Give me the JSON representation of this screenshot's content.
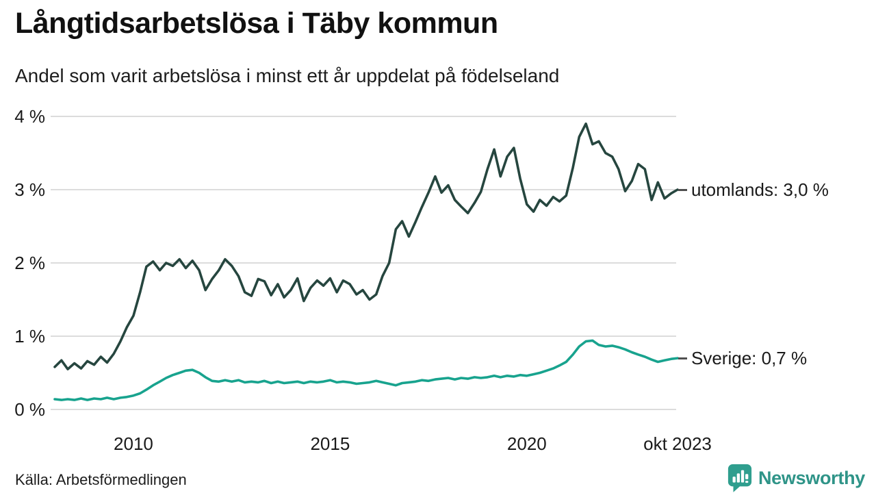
{
  "header": {
    "title": "Långtidsarbetslösa i Täby kommun",
    "subtitle": "Andel som varit arbetslösa i minst ett år uppdelat på födelseland"
  },
  "footer": {
    "source": "Källa: Arbetsförmedlingen",
    "brand": "Newsworthy",
    "brand_color": "#2f9488"
  },
  "chart_data": {
    "type": "line",
    "title": "Långtidsarbetslösa i Täby kommun",
    "subtitle": "Andel som varit arbetslösa i minst ett år uppdelat på födelseland",
    "unit": "%",
    "grid": "horizontal",
    "grid_color": "#dcdcdc",
    "background": "#ffffff",
    "legend_position": "right-end-labels",
    "x_axis": {
      "range": [
        2008.0,
        2023.83
      ],
      "ticks": [
        {
          "label": "2010",
          "year": 2010
        },
        {
          "label": "2015",
          "year": 2015
        },
        {
          "label": "2020",
          "year": 2020
        },
        {
          "label": "okt 2023",
          "year": 2023.83
        }
      ]
    },
    "y_axis": {
      "range": [
        0,
        4
      ],
      "ticks": [
        {
          "label": "0 %",
          "value": 0
        },
        {
          "label": "1 %",
          "value": 1
        },
        {
          "label": "2 %",
          "value": 2
        },
        {
          "label": "3 %",
          "value": 3
        },
        {
          "label": "4 %",
          "value": 4
        }
      ]
    },
    "series": [
      {
        "name": "utomlands",
        "label": "utomlands: 3,0 %",
        "last_value": 3.0,
        "color": "#26463f",
        "points": [
          [
            2008.0,
            0.58
          ],
          [
            2008.17,
            0.67
          ],
          [
            2008.33,
            0.55
          ],
          [
            2008.5,
            0.63
          ],
          [
            2008.67,
            0.56
          ],
          [
            2008.83,
            0.66
          ],
          [
            2009.0,
            0.61
          ],
          [
            2009.17,
            0.72
          ],
          [
            2009.33,
            0.64
          ],
          [
            2009.5,
            0.76
          ],
          [
            2009.67,
            0.93
          ],
          [
            2009.83,
            1.12
          ],
          [
            2010.0,
            1.28
          ],
          [
            2010.17,
            1.6
          ],
          [
            2010.33,
            1.95
          ],
          [
            2010.5,
            2.02
          ],
          [
            2010.67,
            1.9
          ],
          [
            2010.83,
            2.0
          ],
          [
            2011.0,
            1.96
          ],
          [
            2011.17,
            2.05
          ],
          [
            2011.33,
            1.93
          ],
          [
            2011.5,
            2.03
          ],
          [
            2011.67,
            1.9
          ],
          [
            2011.83,
            1.63
          ],
          [
            2012.0,
            1.78
          ],
          [
            2012.17,
            1.9
          ],
          [
            2012.33,
            2.05
          ],
          [
            2012.5,
            1.96
          ],
          [
            2012.67,
            1.82
          ],
          [
            2012.83,
            1.6
          ],
          [
            2013.0,
            1.55
          ],
          [
            2013.17,
            1.78
          ],
          [
            2013.33,
            1.75
          ],
          [
            2013.5,
            1.56
          ],
          [
            2013.67,
            1.71
          ],
          [
            2013.83,
            1.53
          ],
          [
            2014.0,
            1.63
          ],
          [
            2014.17,
            1.79
          ],
          [
            2014.33,
            1.48
          ],
          [
            2014.5,
            1.66
          ],
          [
            2014.67,
            1.76
          ],
          [
            2014.83,
            1.69
          ],
          [
            2015.0,
            1.79
          ],
          [
            2015.17,
            1.6
          ],
          [
            2015.33,
            1.76
          ],
          [
            2015.5,
            1.71
          ],
          [
            2015.67,
            1.57
          ],
          [
            2015.83,
            1.63
          ],
          [
            2016.0,
            1.5
          ],
          [
            2016.17,
            1.57
          ],
          [
            2016.33,
            1.82
          ],
          [
            2016.5,
            2.0
          ],
          [
            2016.67,
            2.46
          ],
          [
            2016.83,
            2.57
          ],
          [
            2017.0,
            2.36
          ],
          [
            2017.17,
            2.56
          ],
          [
            2017.33,
            2.76
          ],
          [
            2017.5,
            2.96
          ],
          [
            2017.67,
            3.18
          ],
          [
            2017.83,
            2.96
          ],
          [
            2018.0,
            3.06
          ],
          [
            2018.17,
            2.86
          ],
          [
            2018.33,
            2.77
          ],
          [
            2018.5,
            2.68
          ],
          [
            2018.67,
            2.82
          ],
          [
            2018.83,
            2.97
          ],
          [
            2019.0,
            3.28
          ],
          [
            2019.17,
            3.55
          ],
          [
            2019.33,
            3.18
          ],
          [
            2019.5,
            3.45
          ],
          [
            2019.67,
            3.57
          ],
          [
            2019.83,
            3.15
          ],
          [
            2020.0,
            2.8
          ],
          [
            2020.17,
            2.7
          ],
          [
            2020.33,
            2.86
          ],
          [
            2020.5,
            2.78
          ],
          [
            2020.67,
            2.9
          ],
          [
            2020.83,
            2.84
          ],
          [
            2021.0,
            2.92
          ],
          [
            2021.17,
            3.3
          ],
          [
            2021.33,
            3.72
          ],
          [
            2021.5,
            3.9
          ],
          [
            2021.67,
            3.62
          ],
          [
            2021.83,
            3.66
          ],
          [
            2022.0,
            3.5
          ],
          [
            2022.17,
            3.45
          ],
          [
            2022.33,
            3.28
          ],
          [
            2022.5,
            2.98
          ],
          [
            2022.67,
            3.12
          ],
          [
            2022.83,
            3.35
          ],
          [
            2023.0,
            3.28
          ],
          [
            2023.17,
            2.86
          ],
          [
            2023.33,
            3.1
          ],
          [
            2023.5,
            2.88
          ],
          [
            2023.67,
            2.95
          ],
          [
            2023.83,
            3.0
          ]
        ]
      },
      {
        "name": "Sverige",
        "label": "Sverige: 0,7 %",
        "last_value": 0.7,
        "color": "#18a38e",
        "points": [
          [
            2008.0,
            0.14
          ],
          [
            2008.17,
            0.13
          ],
          [
            2008.33,
            0.14
          ],
          [
            2008.5,
            0.13
          ],
          [
            2008.67,
            0.15
          ],
          [
            2008.83,
            0.13
          ],
          [
            2009.0,
            0.15
          ],
          [
            2009.17,
            0.14
          ],
          [
            2009.33,
            0.16
          ],
          [
            2009.5,
            0.14
          ],
          [
            2009.67,
            0.16
          ],
          [
            2009.83,
            0.17
          ],
          [
            2010.0,
            0.19
          ],
          [
            2010.17,
            0.22
          ],
          [
            2010.33,
            0.27
          ],
          [
            2010.5,
            0.33
          ],
          [
            2010.67,
            0.38
          ],
          [
            2010.83,
            0.43
          ],
          [
            2011.0,
            0.47
          ],
          [
            2011.17,
            0.5
          ],
          [
            2011.33,
            0.53
          ],
          [
            2011.5,
            0.54
          ],
          [
            2011.67,
            0.5
          ],
          [
            2011.83,
            0.44
          ],
          [
            2012.0,
            0.39
          ],
          [
            2012.17,
            0.38
          ],
          [
            2012.33,
            0.4
          ],
          [
            2012.5,
            0.38
          ],
          [
            2012.67,
            0.4
          ],
          [
            2012.83,
            0.37
          ],
          [
            2013.0,
            0.38
          ],
          [
            2013.17,
            0.37
          ],
          [
            2013.33,
            0.39
          ],
          [
            2013.5,
            0.36
          ],
          [
            2013.67,
            0.38
          ],
          [
            2013.83,
            0.36
          ],
          [
            2014.0,
            0.37
          ],
          [
            2014.17,
            0.38
          ],
          [
            2014.33,
            0.36
          ],
          [
            2014.5,
            0.38
          ],
          [
            2014.67,
            0.37
          ],
          [
            2014.83,
            0.38
          ],
          [
            2015.0,
            0.4
          ],
          [
            2015.17,
            0.37
          ],
          [
            2015.33,
            0.38
          ],
          [
            2015.5,
            0.37
          ],
          [
            2015.67,
            0.35
          ],
          [
            2015.83,
            0.36
          ],
          [
            2016.0,
            0.37
          ],
          [
            2016.17,
            0.39
          ],
          [
            2016.33,
            0.37
          ],
          [
            2016.5,
            0.35
          ],
          [
            2016.67,
            0.33
          ],
          [
            2016.83,
            0.36
          ],
          [
            2017.0,
            0.37
          ],
          [
            2017.17,
            0.38
          ],
          [
            2017.33,
            0.4
          ],
          [
            2017.5,
            0.39
          ],
          [
            2017.67,
            0.41
          ],
          [
            2017.83,
            0.42
          ],
          [
            2018.0,
            0.43
          ],
          [
            2018.17,
            0.41
          ],
          [
            2018.33,
            0.43
          ],
          [
            2018.5,
            0.42
          ],
          [
            2018.67,
            0.44
          ],
          [
            2018.83,
            0.43
          ],
          [
            2019.0,
            0.44
          ],
          [
            2019.17,
            0.46
          ],
          [
            2019.33,
            0.44
          ],
          [
            2019.5,
            0.46
          ],
          [
            2019.67,
            0.45
          ],
          [
            2019.83,
            0.47
          ],
          [
            2020.0,
            0.46
          ],
          [
            2020.17,
            0.48
          ],
          [
            2020.33,
            0.5
          ],
          [
            2020.5,
            0.53
          ],
          [
            2020.67,
            0.56
          ],
          [
            2020.83,
            0.6
          ],
          [
            2021.0,
            0.65
          ],
          [
            2021.17,
            0.75
          ],
          [
            2021.33,
            0.86
          ],
          [
            2021.5,
            0.93
          ],
          [
            2021.67,
            0.94
          ],
          [
            2021.83,
            0.88
          ],
          [
            2022.0,
            0.86
          ],
          [
            2022.17,
            0.87
          ],
          [
            2022.33,
            0.85
          ],
          [
            2022.5,
            0.82
          ],
          [
            2022.67,
            0.78
          ],
          [
            2022.83,
            0.75
          ],
          [
            2023.0,
            0.72
          ],
          [
            2023.17,
            0.68
          ],
          [
            2023.33,
            0.65
          ],
          [
            2023.5,
            0.67
          ],
          [
            2023.67,
            0.69
          ],
          [
            2023.83,
            0.7
          ]
        ]
      }
    ]
  }
}
